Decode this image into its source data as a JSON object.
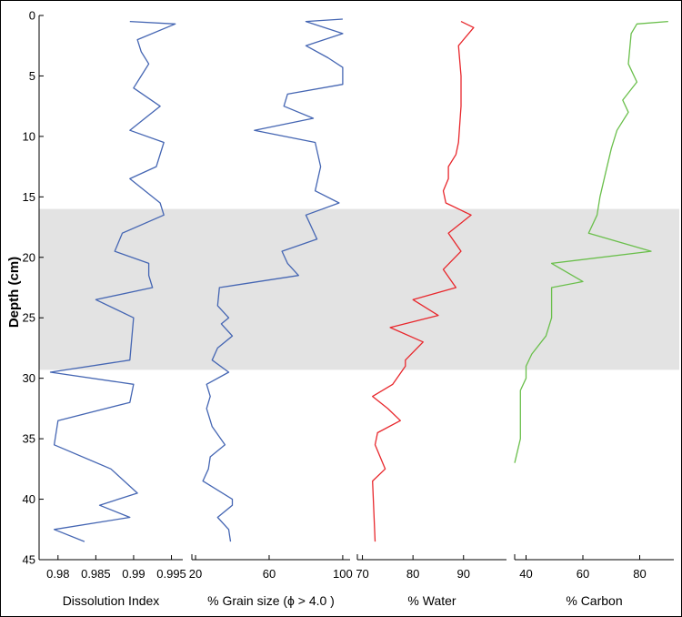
{
  "chart_data": {
    "type": "line",
    "ylabel": "Depth (cm)",
    "ylim": [
      0,
      45
    ],
    "y_reversed": true,
    "y_ticks": [
      0,
      5,
      10,
      15,
      20,
      25,
      30,
      35,
      40,
      45
    ],
    "y_tick_labels": [
      "0",
      "5",
      "10",
      "15",
      "20",
      "25",
      "30",
      "35",
      "40",
      "45"
    ],
    "shaded_band": {
      "ymin": 16,
      "ymax": 29.3,
      "color": "#e3e3e3"
    },
    "panels": [
      {
        "xlabel": "Dissolution Index",
        "xlim": [
          0.9775,
          0.9965
        ],
        "x_ticks": [
          0.98,
          0.985,
          0.99,
          0.995
        ],
        "x_tick_labels": [
          "0.98",
          "0.985",
          "0.99",
          "0.995"
        ],
        "color": "#4566b3",
        "series": [
          {
            "depth": [
              0.5,
              0.7,
              2.0,
              3.0,
              4.0,
              5.0,
              6.0,
              7.5,
              9.5,
              10.5,
              12.5,
              13.5,
              15.5,
              16.5,
              18.0,
              19.5,
              20.5,
              21.5,
              22.5,
              23.5,
              25.0,
              28.5,
              29.5,
              30.5,
              32.0,
              33.5,
              35.5,
              37.5,
              39.5,
              40.5,
              41.5,
              42.5,
              43.5
            ],
            "x": [
              0.9895,
              0.9955,
              0.9905,
              0.991,
              0.992,
              0.991,
              0.99,
              0.9935,
              0.9895,
              0.994,
              0.993,
              0.9895,
              0.9935,
              0.994,
              0.9885,
              0.9875,
              0.992,
              0.992,
              0.9925,
              0.985,
              0.99,
              0.9895,
              0.979,
              0.99,
              0.9895,
              0.98,
              0.9795,
              0.987,
              0.9905,
              0.9855,
              0.9895,
              0.9795,
              0.9835
            ]
          }
        ]
      },
      {
        "xlabel": "% Grain size (ϕ > 4.0 )",
        "xlim": [
          18,
          104
        ],
        "x_ticks": [
          20,
          60,
          100
        ],
        "x_tick_labels": [
          "20",
          "60",
          "100"
        ],
        "color": "#4566b3",
        "series": [
          {
            "depth": [
              0.3,
              0.5,
              1.5,
              2.5,
              3.5,
              4.3,
              5.7,
              6.5,
              7.5,
              8.5,
              9.5,
              10.5,
              12.5,
              14.5,
              15.5,
              16.5,
              18.5,
              19.5,
              20.5,
              21.5,
              22.5,
              24.0,
              25.0,
              25.5,
              26.5,
              27.5,
              28.5,
              29.5,
              30.5,
              31.5,
              32.5,
              34.0,
              35.5,
              36.5,
              37.5,
              38.5,
              40.0,
              40.5,
              41.5,
              42.5,
              43.5
            ],
            "x": [
              100,
              80,
              100,
              80,
              92,
              100,
              100,
              70,
              68,
              84,
              52,
              85,
              88,
              85,
              98,
              80,
              86,
              67,
              70,
              76,
              33,
              32,
              38,
              34,
              40,
              32,
              29,
              38,
              26,
              28,
              26,
              29,
              36,
              28,
              27,
              24,
              40,
              40,
              32,
              38,
              39
            ]
          }
        ]
      },
      {
        "xlabel": "% Water",
        "xlim": [
          69,
          98.5
        ],
        "x_ticks": [
          70,
          80,
          90
        ],
        "x_tick_labels": [
          "70",
          "80",
          "90"
        ],
        "color": "#e8272c",
        "series": [
          {
            "depth": [
              0.5,
              1.0,
              2.5,
              5.0,
              7.5,
              10.5,
              11.5,
              12.5,
              13.5,
              14.5,
              15.5,
              16.5,
              18.0,
              19.5,
              21.0,
              22.5,
              23.5,
              24.8,
              25.8,
              27.0,
              28.5,
              29.0,
              30.5,
              31.5,
              32.5,
              33.5,
              34.5,
              35.5,
              37.5,
              38.5,
              43.5
            ],
            "x": [
              89.5,
              92,
              89,
              89.5,
              89.5,
              89,
              88.5,
              87,
              87,
              86,
              86.5,
              91.5,
              87,
              89.5,
              86,
              88.5,
              80,
              85,
              75.5,
              82,
              78.5,
              78.5,
              76,
              72,
              75,
              77.5,
              73,
              72.5,
              74.5,
              72,
              72.5
            ]
          }
        ]
      },
      {
        "xlabel": "% Carbon",
        "xlim": [
          36,
          92
        ],
        "x_ticks": [
          40,
          60,
          80
        ],
        "x_tick_labels": [
          "40",
          "60",
          "80"
        ],
        "color": "#6abf4b",
        "series": [
          {
            "depth": [
              0.5,
              0.7,
              1.5,
              4.0,
              5.5,
              7.0,
              8.0,
              9.5,
              11.0,
              13.0,
              15.0,
              16.5,
              18.0,
              19.5,
              20.5,
              22.0,
              22.5,
              25.0,
              26.5,
              28.0,
              29.0,
              30.0,
              31.0,
              35.0,
              37.0
            ],
            "x": [
              90,
              79,
              77,
              76,
              79,
              74,
              76,
              72,
              70,
              68,
              66,
              65,
              62,
              84,
              49,
              60,
              49,
              49,
              47,
              42,
              40,
              40,
              38,
              38,
              36
            ]
          }
        ]
      }
    ]
  }
}
